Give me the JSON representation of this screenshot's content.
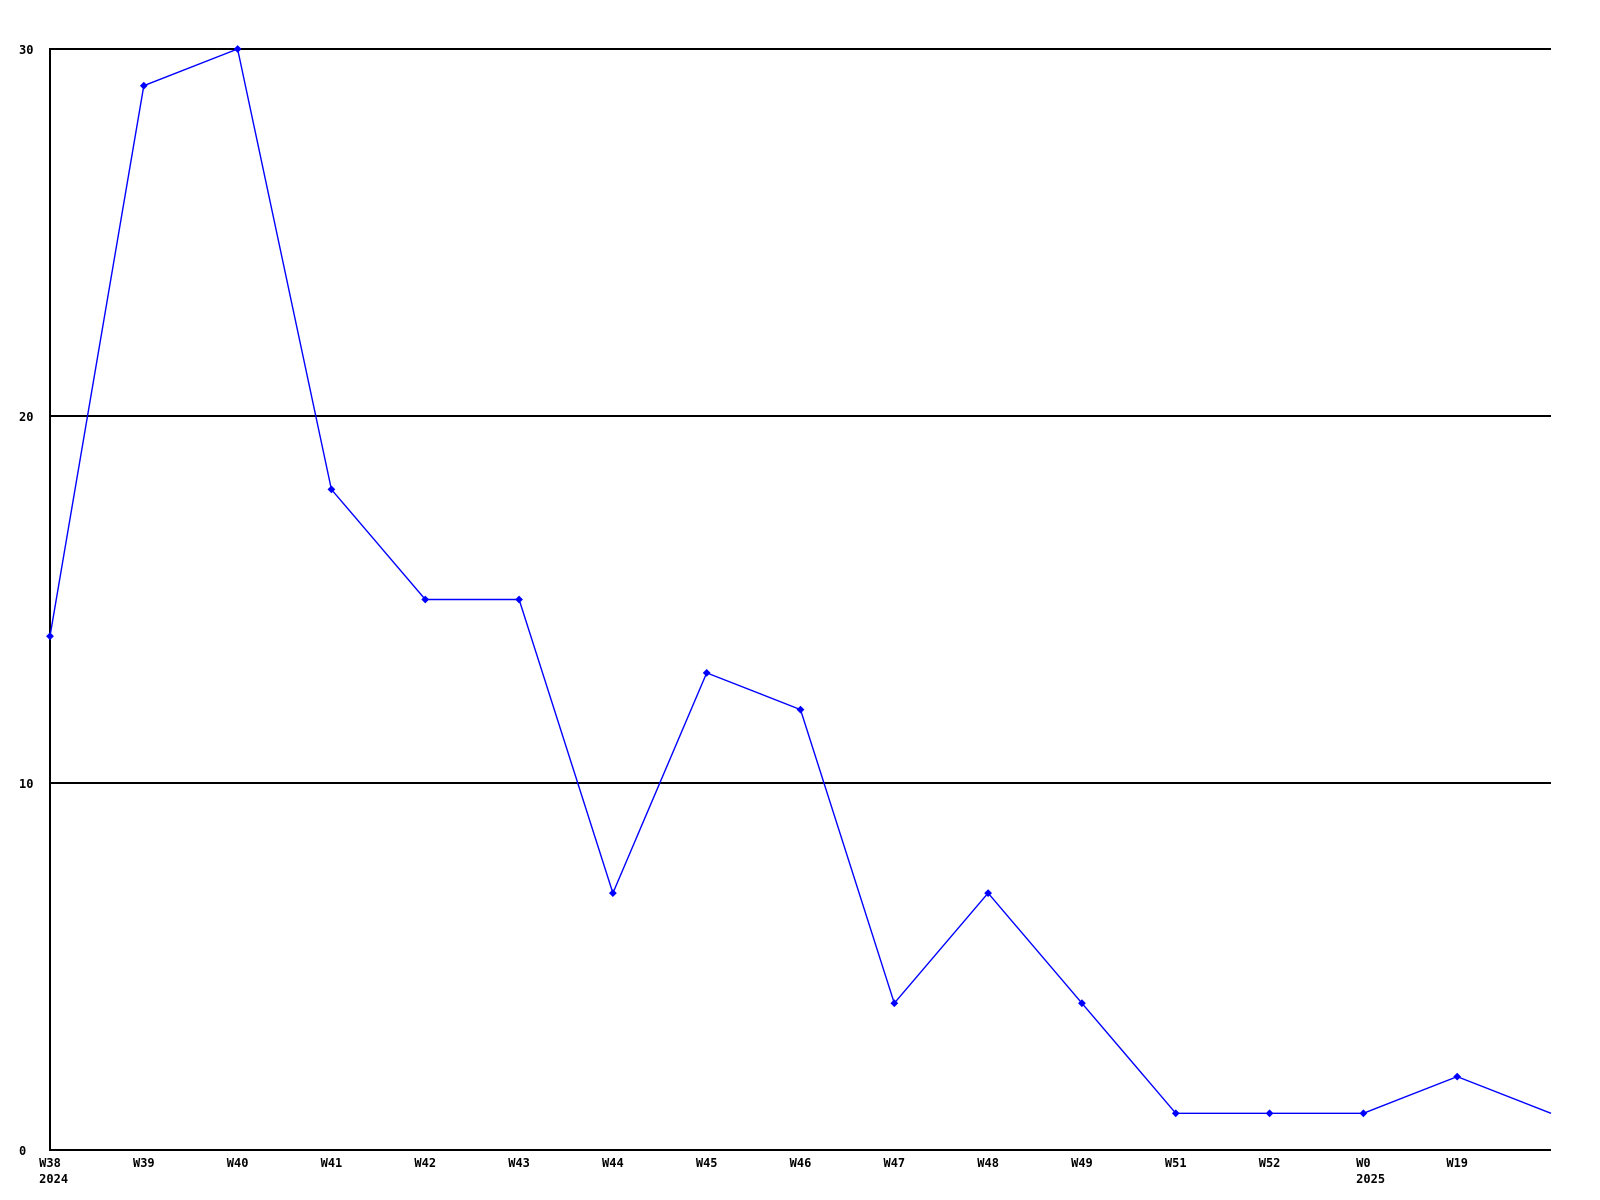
{
  "chart_data": {
    "type": "line",
    "title": "",
    "xlabel": "",
    "ylabel": "",
    "ylim": [
      0,
      30
    ],
    "yticks": [
      0,
      10,
      20,
      30
    ],
    "grid": "horizontal",
    "legend": null,
    "colors": {
      "series": "#0000ff",
      "axis": "#000000",
      "background": "#ffffff",
      "text": "#000000"
    },
    "points": [
      {
        "label": "W38",
        "year": "2024",
        "value": 14
      },
      {
        "label": "W39",
        "value": 29
      },
      {
        "label": "W40",
        "value": 30
      },
      {
        "label": "W41",
        "value": 18
      },
      {
        "label": "W42",
        "value": 15
      },
      {
        "label": "W43",
        "value": 15
      },
      {
        "label": "W44",
        "value": 7
      },
      {
        "label": "W45",
        "value": 13
      },
      {
        "label": "W46",
        "value": 12
      },
      {
        "label": "W47",
        "value": 4
      },
      {
        "label": "W48",
        "value": 7
      },
      {
        "label": "W49",
        "value": 4
      },
      {
        "label": "W51",
        "value": 1
      },
      {
        "label": "W52",
        "value": 1
      },
      {
        "label": "W0",
        "year": "2025",
        "value": 1
      },
      {
        "label": "W19",
        "value": 2
      },
      {
        "label": "",
        "value": 1,
        "marker": false
      }
    ]
  }
}
